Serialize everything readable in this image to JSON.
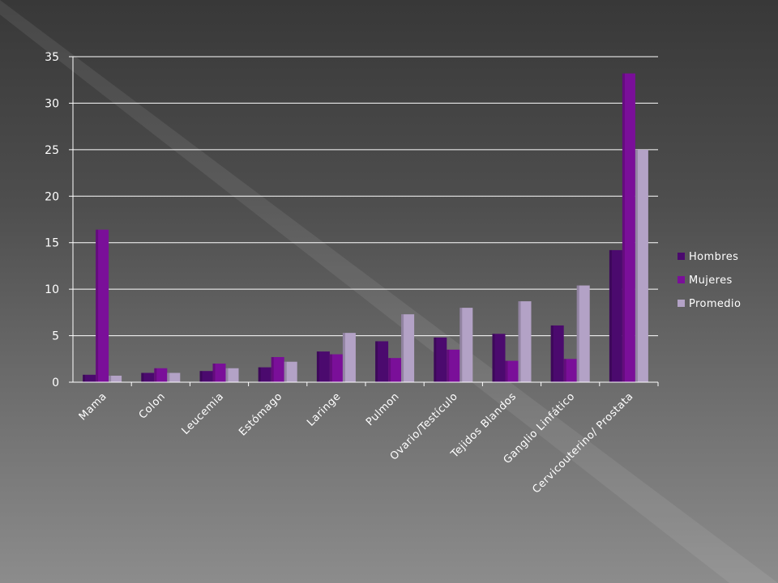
{
  "chart_data": {
    "type": "bar",
    "categories": [
      "Mama",
      "Colon",
      "Leucemia",
      "Estómago",
      "Laringe",
      "Pulmon",
      "Ovario/Testículo",
      "Tejidos Blandos",
      "Ganglio Linfático",
      "Cervicouterino/ Prostata"
    ],
    "series": [
      {
        "name": "Hombres",
        "values": [
          0.8,
          1.0,
          1.2,
          1.6,
          3.3,
          4.4,
          4.8,
          5.2,
          6.1,
          14.2
        ]
      },
      {
        "name": "Mujeres",
        "values": [
          16.4,
          1.5,
          2.0,
          2.7,
          3.0,
          2.6,
          3.5,
          2.3,
          2.5,
          33.2
        ]
      },
      {
        "name": "Promedio",
        "values": [
          0.7,
          1.0,
          1.5,
          2.2,
          5.3,
          7.3,
          8.0,
          8.7,
          10.4,
          25.0
        ]
      }
    ],
    "title": "",
    "xlabel": "",
    "ylabel": "",
    "ylim": [
      0,
      35
    ],
    "yticks": [
      0,
      5,
      10,
      15,
      20,
      25,
      30,
      35
    ],
    "grid": true,
    "legend_position": "right",
    "colors": {
      "Hombres": "#4b0a6e",
      "Mujeres": "#7a0f99",
      "Promedio": "#b3a2c6",
      "gridline": "#ffffff",
      "axis": "#ffffff"
    }
  }
}
